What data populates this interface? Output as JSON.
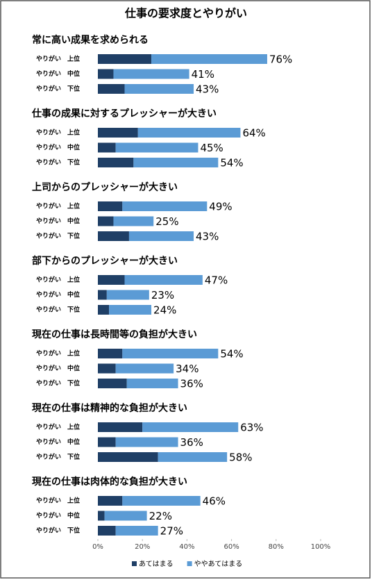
{
  "chart_data": {
    "type": "bar",
    "orientation": "horizontal",
    "stacked": true,
    "title": "仕事の要求度とやりがい",
    "series": [
      {
        "name": "あてはまる",
        "color": "#1f3f66"
      },
      {
        "name": "ややあてはまる",
        "color": "#5b9bd5"
      }
    ],
    "xlim": [
      0,
      100
    ],
    "xticks": [
      {
        "value": 0,
        "label": "0%"
      },
      {
        "value": 20,
        "label": "20%"
      },
      {
        "value": 40,
        "label": "40%"
      },
      {
        "value": 60,
        "label": "60%"
      },
      {
        "value": 80,
        "label": "80%"
      },
      {
        "value": 100,
        "label": "100%"
      }
    ],
    "groups": [
      {
        "title": "常に高い成果を求められる",
        "categories": [
          "やりがい　上位",
          "やりがい　中位",
          "やりがい　下位"
        ],
        "values": [
          [
            24,
            7,
            12
          ],
          [
            52,
            34,
            31
          ]
        ],
        "totals": [
          76,
          41,
          43
        ],
        "total_labels": [
          "76%",
          "41%",
          "43%"
        ]
      },
      {
        "title": "仕事の成果に対するプレッシャーが大きい",
        "categories": [
          "やりがい　上位",
          "やりがい　中位",
          "やりがい　下位"
        ],
        "values": [
          [
            18,
            8,
            16
          ],
          [
            46,
            37,
            38
          ]
        ],
        "totals": [
          64,
          45,
          54
        ],
        "total_labels": [
          "64%",
          "45%",
          "54%"
        ]
      },
      {
        "title": "上司からのプレッシャーが大きい",
        "categories": [
          "やりがい　上位",
          "やりがい　中位",
          "やりがい　下位"
        ],
        "values": [
          [
            11,
            7,
            14
          ],
          [
            38,
            18,
            29
          ]
        ],
        "totals": [
          49,
          25,
          43
        ],
        "total_labels": [
          "49%",
          "25%",
          "43%"
        ]
      },
      {
        "title": "部下からのプレッシャーが大きい",
        "categories": [
          "やりがい　上位",
          "やりがい　中位",
          "やりがい　下位"
        ],
        "values": [
          [
            12,
            4,
            5
          ],
          [
            35,
            19,
            19
          ]
        ],
        "totals": [
          47,
          23,
          24
        ],
        "total_labels": [
          "47%",
          "23%",
          "24%"
        ]
      },
      {
        "title": "現在の仕事は長時間等の負担が大きい",
        "categories": [
          "やりがい　上位",
          "やりがい　中位",
          "やりがい　下位"
        ],
        "values": [
          [
            11,
            8,
            13
          ],
          [
            43,
            26,
            23
          ]
        ],
        "totals": [
          54,
          34,
          36
        ],
        "total_labels": [
          "54%",
          "34%",
          "36%"
        ]
      },
      {
        "title": "現在の仕事は精神的な負担が大きい",
        "categories": [
          "やりがい　上位",
          "やりがい　中位",
          "やりがい　下位"
        ],
        "values": [
          [
            20,
            8,
            27
          ],
          [
            43,
            28,
            31
          ]
        ],
        "totals": [
          63,
          36,
          58
        ],
        "total_labels": [
          "63%",
          "36%",
          "58%"
        ]
      },
      {
        "title": "現在の仕事は肉体的な負担が大きい",
        "categories": [
          "やりがい　上位",
          "やりがい　中位",
          "やりがい　下位"
        ],
        "values": [
          [
            11,
            3,
            8
          ],
          [
            35,
            19,
            19
          ]
        ],
        "totals": [
          46,
          22,
          27
        ],
        "total_labels": [
          "46%",
          "22%",
          "27%"
        ]
      }
    ]
  }
}
